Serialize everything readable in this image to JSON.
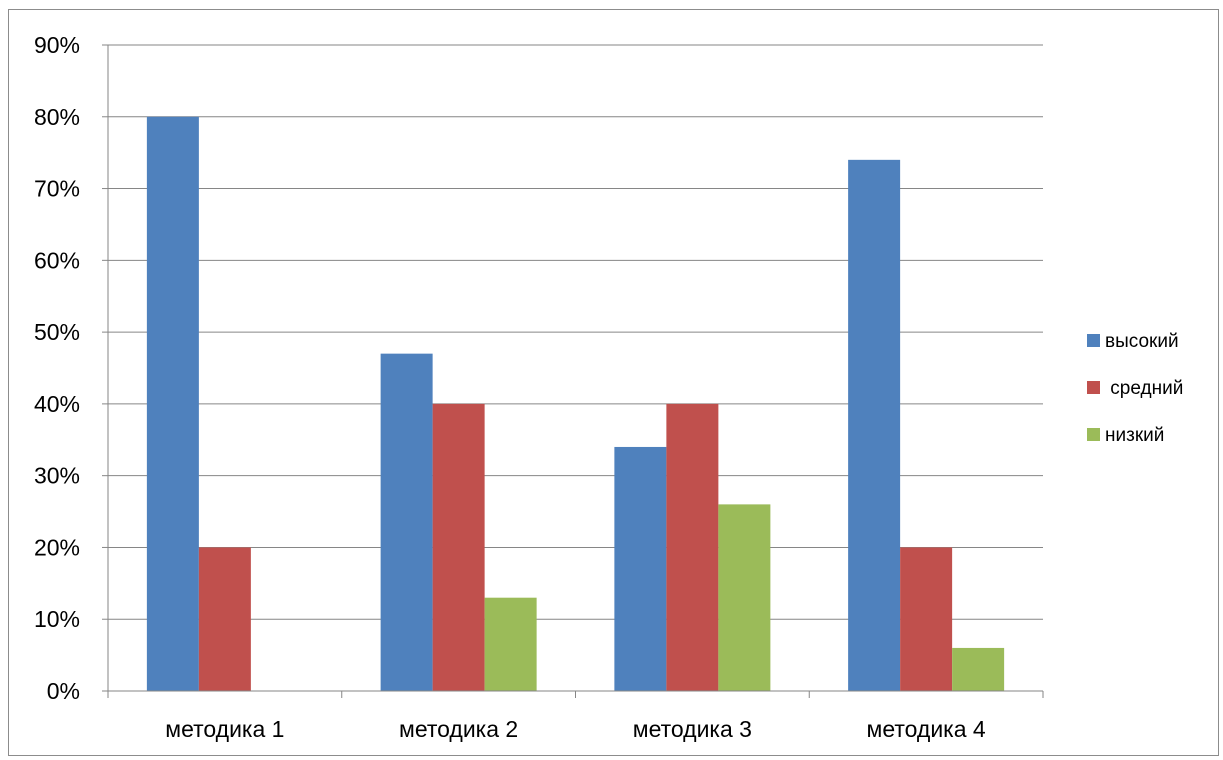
{
  "chart_data": {
    "type": "bar",
    "categories": [
      "методика 1",
      "методика 2",
      "методика 3",
      "методика 4"
    ],
    "series": [
      {
        "name": "высокий",
        "values": [
          80,
          47,
          34,
          74
        ],
        "color": "#4f81bd"
      },
      {
        "name": " средний",
        "values": [
          20,
          40,
          40,
          20
        ],
        "color": "#c0504d"
      },
      {
        "name": "низкий",
        "values": [
          0,
          13,
          26,
          6
        ],
        "color": "#9bbb59"
      }
    ],
    "ylim": [
      0,
      90
    ],
    "yticks": [
      "0%",
      "10%",
      "20%",
      "30%",
      "40%",
      "50%",
      "60%",
      "70%",
      "80%",
      "90%"
    ],
    "grid": true,
    "legend_position": "right",
    "title": "",
    "xlabel": "",
    "ylabel": ""
  }
}
